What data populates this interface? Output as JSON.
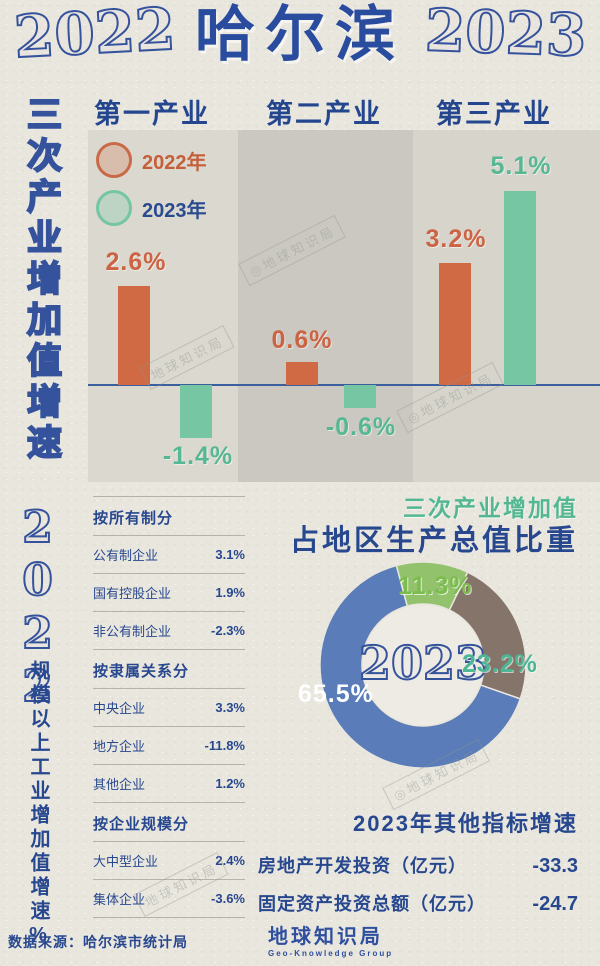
{
  "header": {
    "year_left": "2022",
    "title": "哈尔滨",
    "year_right": "2023"
  },
  "sidebar": {
    "vertical_label_top": "三次产业增加值增速",
    "vertical_year": "2022",
    "vertical_label_bottom": "规模以上工业增加值增速%"
  },
  "watermark": {
    "text": "地球知识局",
    "text_alt": "◎地球知识局"
  },
  "footer": {
    "source": "数据来源：哈尔滨市统计局",
    "logo_title": "地球知识局",
    "logo_subtitle": "Geo-Knowledge Group"
  },
  "chart_data": [
    {
      "type": "bar",
      "title": "三次产业增加值增速",
      "categories": [
        "第一产业",
        "第二产业",
        "第三产业"
      ],
      "series": [
        {
          "name": "2022年",
          "color": "#cf6a45",
          "values": [
            2.6,
            0.6,
            3.2
          ],
          "labels": [
            "2.6%",
            "0.6%",
            "3.2%"
          ]
        },
        {
          "name": "2023年",
          "color": "#76c6a4",
          "values": [
            -1.4,
            -0.6,
            5.1
          ],
          "labels": [
            "-1.4%",
            "-0.6%",
            "5.1%"
          ]
        }
      ],
      "ylim": [
        -2.2,
        5.6
      ],
      "baseline": 0,
      "legend_position": "top-left",
      "grid": false
    },
    {
      "type": "pie",
      "title_line1": "三次产业增加值",
      "title_line2": "占地区生产总值比重",
      "center_label": "2023",
      "slices": [
        {
          "label": "11.3%",
          "value": 11.3,
          "color": "#92c26b"
        },
        {
          "label": "23.2%",
          "value": 23.2,
          "color": "#84746a"
        },
        {
          "label": "65.5%",
          "value": 65.5,
          "color": "#5a7cb8"
        }
      ],
      "start_angle_deg": -15
    },
    {
      "type": "table",
      "title": "规模以上工业增加值增速%",
      "sections": [
        {
          "header": "按所有制分",
          "rows": [
            {
              "label": "公有制企业",
              "value": "3.1%"
            },
            {
              "label": "国有控股企业",
              "value": "1.9%"
            },
            {
              "label": "非公有制企业",
              "value": "-2.3%"
            }
          ]
        },
        {
          "header": "按隶属关系分",
          "rows": [
            {
              "label": "中央企业",
              "value": "3.3%"
            },
            {
              "label": "地方企业",
              "value": "-11.8%"
            },
            {
              "label": "其他企业",
              "value": "1.2%"
            }
          ]
        },
        {
          "header": "按企业规模分",
          "rows": [
            {
              "label": "大中型企业",
              "value": "2.4%"
            },
            {
              "label": "集体企业",
              "value": "-3.6%"
            }
          ]
        }
      ]
    },
    {
      "type": "table",
      "title": "2023年其他指标增速",
      "rows": [
        {
          "label": "房地产开发投资（亿元）",
          "value": "-33.3"
        },
        {
          "label": "固定资产投资总额（亿元）",
          "value": "-24.7"
        }
      ]
    }
  ]
}
